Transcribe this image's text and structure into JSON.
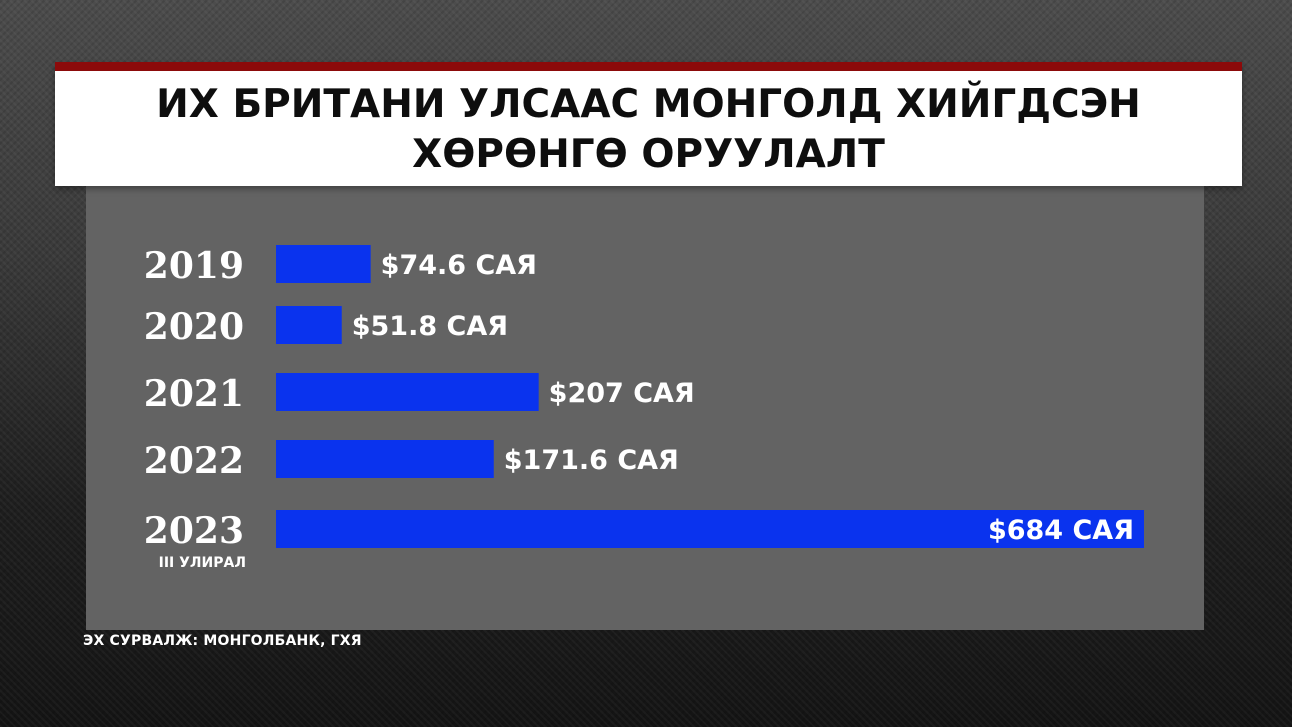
{
  "chart_data": {
    "type": "bar",
    "orientation": "horizontal",
    "title": "ИХ БРИТАНИ УЛСААС МОНГОЛД ХИЙГДСЭН ХӨРӨНГӨ ОРУУЛАЛТ",
    "categories": [
      "2019",
      "2020",
      "2021",
      "2022",
      "2023"
    ],
    "category_notes": [
      "",
      "",
      "",
      "",
      "III УЛИРАЛ"
    ],
    "values": [
      74.6,
      51.8,
      207,
      171.6,
      684
    ],
    "value_labels": [
      "$74.6 САЯ",
      "$51.8 САЯ",
      "$207 САЯ",
      "$171.6 САЯ",
      "$684 САЯ"
    ],
    "xlim": [
      0,
      684
    ],
    "grid": false,
    "legend": "none",
    "source": "ЭХ СУРВАЛЖ: МОНГОЛБАНК, ГХЯ"
  },
  "colors": {
    "bar": "#0a33ee",
    "accent": "#8c0a0a",
    "panel": "#636363",
    "text_light": "#ffffff",
    "title_text": "#0e0e0e"
  }
}
